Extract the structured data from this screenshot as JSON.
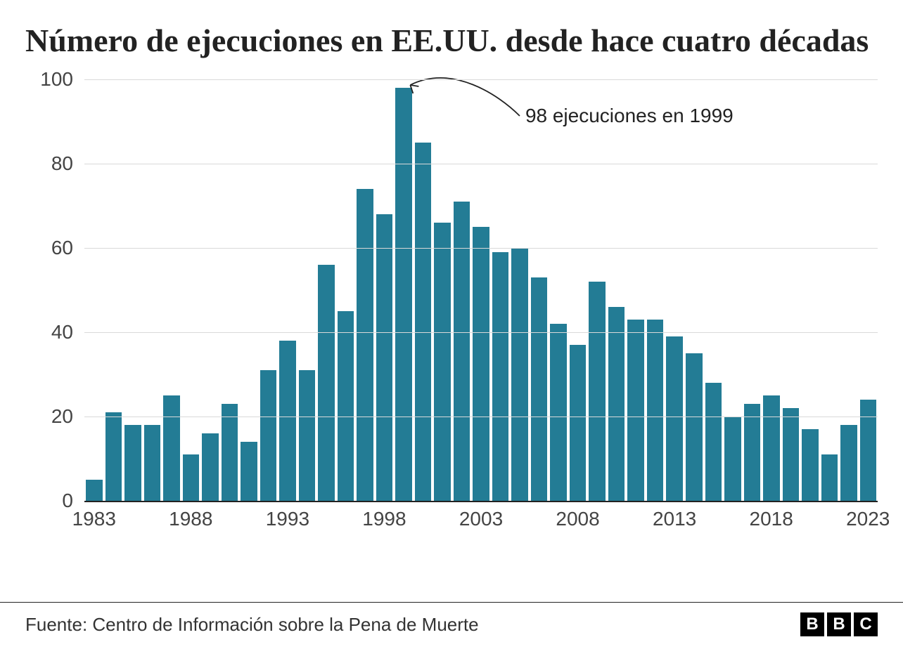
{
  "title": "Número de ejecuciones en EE.UU. desde hace cuatro décadas",
  "chart": {
    "type": "bar",
    "bar_color": "#237c95",
    "background_color": "#ffffff",
    "grid_color": "#d9d9d9",
    "axis_color": "#222222",
    "title_fontsize": 46,
    "axis_fontsize": 28,
    "years": [
      1983,
      1984,
      1985,
      1986,
      1987,
      1988,
      1989,
      1990,
      1991,
      1992,
      1993,
      1994,
      1995,
      1996,
      1997,
      1998,
      1999,
      2000,
      2001,
      2002,
      2003,
      2004,
      2005,
      2006,
      2007,
      2008,
      2009,
      2010,
      2011,
      2012,
      2013,
      2014,
      2015,
      2016,
      2017,
      2018,
      2019,
      2020,
      2021,
      2022,
      2023
    ],
    "values": [
      5,
      21,
      18,
      18,
      25,
      11,
      16,
      23,
      14,
      31,
      38,
      31,
      56,
      45,
      74,
      68,
      98,
      85,
      66,
      71,
      65,
      59,
      60,
      53,
      42,
      37,
      52,
      46,
      43,
      43,
      39,
      35,
      28,
      20,
      23,
      25,
      22,
      17,
      11,
      18,
      24
    ],
    "ylim": [
      0,
      100
    ],
    "yticks": [
      0,
      20,
      40,
      60,
      80,
      100
    ],
    "xticks": [
      1983,
      1988,
      1993,
      1998,
      2003,
      2008,
      2013,
      2018,
      2023
    ],
    "annotation": {
      "text": "98 ejecuciones en 1999",
      "target_year": 1999
    }
  },
  "source": "Fuente: Centro de Información sobre la Pena de Muerte",
  "logo_letters": [
    "B",
    "B",
    "C"
  ]
}
